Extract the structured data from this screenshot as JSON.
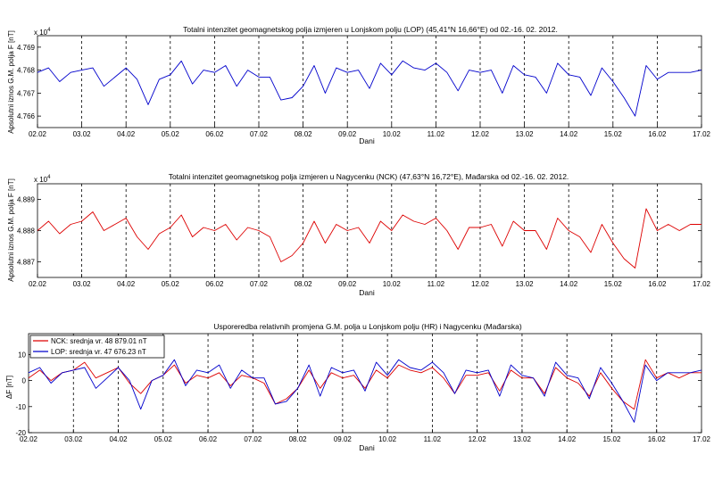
{
  "chart_data": [
    {
      "type": "line",
      "title": "Totalni intenzitet geomagnetskog polja izmjeren u Lonjskom polju (LOP) (45,41°N 16,66°E) od 02.-16. 02. 2012.",
      "xlabel": "Dani",
      "ylabel": "Apsolutni iznos G.M. polja F [nT]",
      "exponent": "x 10",
      "exponent_power": "4",
      "xticks": [
        "02.02",
        "03.02",
        "04.02",
        "05.02",
        "06.02",
        "07.02",
        "08.02",
        "09.02",
        "10.02",
        "11.02",
        "12.02",
        "13.02",
        "14.02",
        "15.02",
        "16.02",
        "17.02"
      ],
      "xlim": [
        2,
        17
      ],
      "ylim": [
        4.7655,
        4.7695
      ],
      "yticks": [
        "4.766",
        "4.767",
        "4.768",
        "4.769"
      ],
      "ytick_values": [
        4.766,
        4.767,
        4.768,
        4.769
      ],
      "day_boundaries_dashed": true,
      "series": [
        {
          "color": "#0000cc",
          "x": [
            2.0,
            2.25,
            2.5,
            2.75,
            3.0,
            3.25,
            3.5,
            3.75,
            4.0,
            4.25,
            4.5,
            4.75,
            5.0,
            5.25,
            5.5,
            5.75,
            6.0,
            6.25,
            6.5,
            6.75,
            7.0,
            7.25,
            7.5,
            7.75,
            8.0,
            8.25,
            8.5,
            8.75,
            9.0,
            9.25,
            9.5,
            9.75,
            10.0,
            10.25,
            10.5,
            10.75,
            11.0,
            11.25,
            11.5,
            11.75,
            12.0,
            12.25,
            12.5,
            12.75,
            13.0,
            13.25,
            13.5,
            13.75,
            14.0,
            14.25,
            14.5,
            14.75,
            15.0,
            15.25,
            15.5,
            15.75,
            16.0,
            16.25,
            16.5,
            16.75,
            17.0
          ],
          "y": [
            4.7679,
            4.7681,
            4.7675,
            4.7679,
            4.768,
            4.7681,
            4.7673,
            4.7677,
            4.7681,
            4.7676,
            4.7665,
            4.7676,
            4.7678,
            4.7684,
            4.7674,
            4.768,
            4.7679,
            4.7682,
            4.7673,
            4.768,
            4.7677,
            4.7677,
            4.7667,
            4.7668,
            4.7673,
            4.7682,
            4.767,
            4.7681,
            4.7679,
            4.768,
            4.7672,
            4.7683,
            4.7678,
            4.7684,
            4.7681,
            4.768,
            4.7683,
            4.7679,
            4.7671,
            4.768,
            4.7679,
            4.768,
            4.767,
            4.7682,
            4.7678,
            4.7677,
            4.767,
            4.7683,
            4.7678,
            4.7677,
            4.7669,
            4.7681,
            4.7675,
            4.7668,
            4.766,
            4.7682,
            4.7676,
            4.7679,
            4.7679,
            4.7679,
            4.768
          ]
        }
      ]
    },
    {
      "type": "line",
      "title": "Totalni intenzitet geomagnetskog polja izmjeren u Nagycenku (NCK) (47,63°N 16,72°E), Mađarska od 02.-16. 02. 2012.",
      "xlabel": "Dani",
      "ylabel": "Apsolutni iznos G.M. polja F [nT]",
      "exponent": "x 10",
      "exponent_power": "4",
      "xticks": [
        "02.02",
        "03.02",
        "04.02",
        "05.02",
        "06.02",
        "07.02",
        "08.02",
        "09.02",
        "10.02",
        "11.02",
        "12.02",
        "13.02",
        "14.02",
        "15.02",
        "16.02",
        "17.02"
      ],
      "xlim": [
        2,
        17
      ],
      "ylim": [
        4.8865,
        4.8895
      ],
      "yticks": [
        "4.887",
        "4.888",
        "4.889"
      ],
      "ytick_values": [
        4.887,
        4.888,
        4.889
      ],
      "day_boundaries_dashed": true,
      "series": [
        {
          "color": "#dd0000",
          "x": [
            2.0,
            2.25,
            2.5,
            2.75,
            3.0,
            3.25,
            3.5,
            3.75,
            4.0,
            4.25,
            4.5,
            4.75,
            5.0,
            5.25,
            5.5,
            5.75,
            6.0,
            6.25,
            6.5,
            6.75,
            7.0,
            7.25,
            7.5,
            7.75,
            8.0,
            8.25,
            8.5,
            8.75,
            9.0,
            9.25,
            9.5,
            9.75,
            10.0,
            10.25,
            10.5,
            10.75,
            11.0,
            11.25,
            11.5,
            11.75,
            12.0,
            12.25,
            12.5,
            12.75,
            13.0,
            13.25,
            13.5,
            13.75,
            14.0,
            14.25,
            14.5,
            14.75,
            15.0,
            15.25,
            15.5,
            15.75,
            16.0,
            16.25,
            16.5,
            16.75,
            17.0
          ],
          "y": [
            4.888,
            4.8883,
            4.8879,
            4.8882,
            4.8883,
            4.8886,
            4.888,
            4.8882,
            4.8884,
            4.8878,
            4.8874,
            4.8879,
            4.8881,
            4.8885,
            4.8878,
            4.8881,
            4.888,
            4.8882,
            4.8877,
            4.8881,
            4.888,
            4.8878,
            4.887,
            4.8872,
            4.8876,
            4.8883,
            4.8876,
            4.8882,
            4.888,
            4.8881,
            4.8876,
            4.8883,
            4.888,
            4.8885,
            4.8883,
            4.8882,
            4.8884,
            4.888,
            4.8874,
            4.8881,
            4.8881,
            4.8882,
            4.8875,
            4.8883,
            4.888,
            4.888,
            4.8874,
            4.8884,
            4.888,
            4.8878,
            4.8873,
            4.8882,
            4.8876,
            4.8871,
            4.8868,
            4.8887,
            4.888,
            4.8882,
            4.888,
            4.8882,
            4.8882
          ]
        }
      ]
    },
    {
      "type": "line",
      "title": "Usporeredba relativnih promjena G.M. polja u Lonjskom polju (HR) i Nagycenku (Mađarska)",
      "xlabel": "Dani",
      "ylabel": "ΔF [nT]",
      "xticks": [
        "02.02",
        "03.02",
        "04.02",
        "05.02",
        "06.02",
        "07.02",
        "08.02",
        "09.02",
        "10.02",
        "11.02",
        "12.02",
        "13.02",
        "14.02",
        "15.02",
        "16.02",
        "17.02"
      ],
      "xlim": [
        2,
        17
      ],
      "ylim": [
        -20,
        18
      ],
      "yticks": [
        "-20",
        "-10",
        "0",
        "10"
      ],
      "ytick_values": [
        -20,
        -10,
        0,
        10
      ],
      "day_boundaries_dashed": true,
      "legend": "top-left",
      "series": [
        {
          "name": "NCK: srednja vr. 48 879.01 nT",
          "color": "#dd0000",
          "x": [
            2.0,
            2.25,
            2.5,
            2.75,
            3.0,
            3.25,
            3.5,
            3.75,
            4.0,
            4.25,
            4.5,
            4.75,
            5.0,
            5.25,
            5.5,
            5.75,
            6.0,
            6.25,
            6.5,
            6.75,
            7.0,
            7.25,
            7.5,
            7.75,
            8.0,
            8.25,
            8.5,
            8.75,
            9.0,
            9.25,
            9.5,
            9.75,
            10.0,
            10.25,
            10.5,
            10.75,
            11.0,
            11.25,
            11.5,
            11.75,
            12.0,
            12.25,
            12.5,
            12.75,
            13.0,
            13.25,
            13.5,
            13.75,
            14.0,
            14.25,
            14.5,
            14.75,
            15.0,
            15.25,
            15.5,
            15.75,
            16.0,
            16.25,
            16.5,
            16.75,
            17.0
          ],
          "y": [
            1,
            4,
            0,
            3,
            4,
            7,
            1,
            3,
            5,
            -1,
            -5,
            0,
            2,
            6,
            -1,
            2,
            1,
            3,
            -2,
            2,
            1,
            -1,
            -9,
            -7,
            -3,
            4,
            -3,
            3,
            1,
            2,
            -3,
            4,
            1,
            6,
            4,
            3,
            5,
            1,
            -5,
            2,
            2,
            3,
            -4,
            4,
            1,
            1,
            -5,
            5,
            1,
            -1,
            -6,
            3,
            -3,
            -8,
            -11,
            8,
            1,
            3,
            1,
            3,
            3
          ]
        },
        {
          "name": "LOP: srednja vr. 47 676.23 nT",
          "color": "#0000cc",
          "x": [
            2.0,
            2.25,
            2.5,
            2.75,
            3.0,
            3.25,
            3.5,
            3.75,
            4.0,
            4.25,
            4.5,
            4.75,
            5.0,
            5.25,
            5.5,
            5.75,
            6.0,
            6.25,
            6.5,
            6.75,
            7.0,
            7.25,
            7.5,
            7.75,
            8.0,
            8.25,
            8.5,
            8.75,
            9.0,
            9.25,
            9.5,
            9.75,
            10.0,
            10.25,
            10.5,
            10.75,
            11.0,
            11.25,
            11.5,
            11.75,
            12.0,
            12.25,
            12.5,
            12.75,
            13.0,
            13.25,
            13.5,
            13.75,
            14.0,
            14.25,
            14.5,
            14.75,
            15.0,
            15.25,
            15.5,
            15.75,
            16.0,
            16.25,
            16.5,
            16.75,
            17.0
          ],
          "y": [
            3,
            5,
            -1,
            3,
            4,
            5,
            -3,
            1,
            5,
            0,
            -11,
            0,
            2,
            8,
            -2,
            4,
            3,
            6,
            -3,
            4,
            1,
            1,
            -9,
            -8,
            -3,
            6,
            -6,
            5,
            3,
            4,
            -4,
            7,
            2,
            8,
            5,
            4,
            7,
            3,
            -5,
            4,
            3,
            4,
            -6,
            6,
            2,
            1,
            -6,
            7,
            2,
            1,
            -7,
            5,
            -1,
            -8,
            -16,
            6,
            0,
            3,
            3,
            3,
            4
          ]
        }
      ]
    }
  ]
}
